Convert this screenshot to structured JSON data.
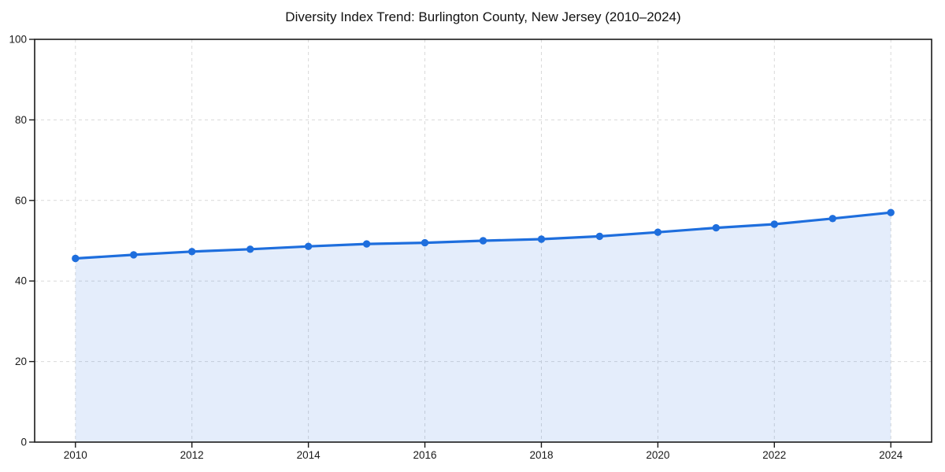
{
  "title": {
    "text": "Diversity Index Trend: Burlington County, New Jersey (2010–2024)"
  },
  "chart_data": {
    "type": "area",
    "title": "Diversity Index Trend: Burlington County, New Jersey (2010–2024)",
    "x": [
      2010,
      2011,
      2012,
      2013,
      2014,
      2015,
      2016,
      2017,
      2018,
      2019,
      2020,
      2021,
      2022,
      2023,
      2024
    ],
    "series": [
      {
        "name": "Diversity Index",
        "values": [
          45.6,
          46.5,
          47.3,
          47.9,
          48.6,
          49.2,
          49.5,
          50.0,
          50.4,
          51.1,
          52.1,
          53.2,
          54.1,
          55.5,
          57.0
        ]
      }
    ],
    "xlabel": "",
    "ylabel": "",
    "xticks": [
      2010,
      2012,
      2014,
      2016,
      2018,
      2020,
      2022,
      2024
    ],
    "yticks": [
      0,
      20,
      40,
      60,
      80,
      100
    ],
    "ylim": [
      0,
      100
    ],
    "x_padding": 0.7,
    "grid": true,
    "grid_style": "dashed",
    "legend_position": "none",
    "colors": {
      "line": "#1e6edd",
      "marker": "#1e6edd",
      "fill": "rgba(30, 110, 221, 0.12)",
      "gridline": "#d9d9d9",
      "spine": "#1a1a1a",
      "tick_label": "#191919",
      "title": "#111111",
      "background": "#ffffff"
    }
  }
}
